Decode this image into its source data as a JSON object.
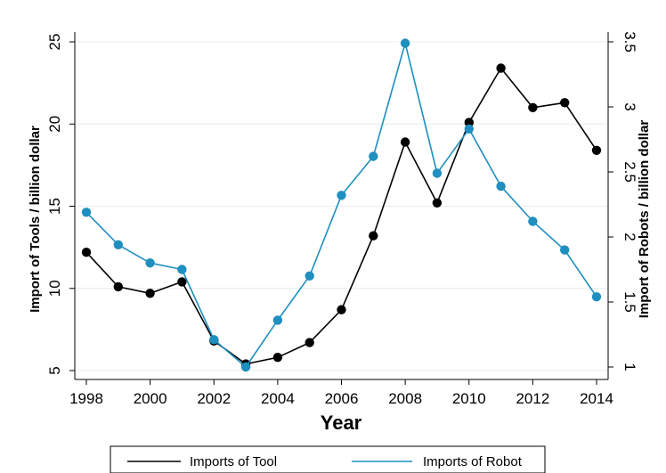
{
  "chart_data": {
    "type": "line",
    "xlabel": "Year",
    "ylabel_left": "Import of Tools / billion dollar",
    "ylabel_right": "Import of Robots / billion dollar",
    "x": [
      1998,
      1999,
      2000,
      2001,
      2002,
      2003,
      2004,
      2005,
      2006,
      2007,
      2008,
      2009,
      2010,
      2011,
      2012,
      2013,
      2014
    ],
    "x_ticks": [
      "1998",
      "2000",
      "2002",
      "2004",
      "2006",
      "2008",
      "2010",
      "2012",
      "2014"
    ],
    "xlim": [
      1998,
      2014
    ],
    "ylim_left": [
      5,
      25
    ],
    "ylim_right": [
      1,
      3.5
    ],
    "y_ticks_left": [
      "5",
      "10",
      "15",
      "20",
      "25"
    ],
    "y_ticks_right": [
      "1",
      "1.5",
      "2",
      "2.5",
      "3",
      "3.5"
    ],
    "grid": true,
    "legend_position": "bottom",
    "series": [
      {
        "name": "Imports of Tool",
        "axis": "left",
        "color": "#000000",
        "values": [
          12.2,
          10.1,
          9.7,
          10.4,
          6.8,
          5.4,
          5.8,
          6.7,
          8.7,
          13.2,
          18.9,
          15.2,
          20.1,
          23.4,
          21.0,
          21.3,
          18.4
        ]
      },
      {
        "name": "Imports of Robot",
        "axis": "right",
        "color": "#1e8fbf",
        "values": [
          2.19,
          1.94,
          1.8,
          1.75,
          1.21,
          1.0,
          1.36,
          1.7,
          2.32,
          2.62,
          3.49,
          2.49,
          2.83,
          2.39,
          2.12,
          1.9,
          1.54
        ]
      }
    ]
  }
}
